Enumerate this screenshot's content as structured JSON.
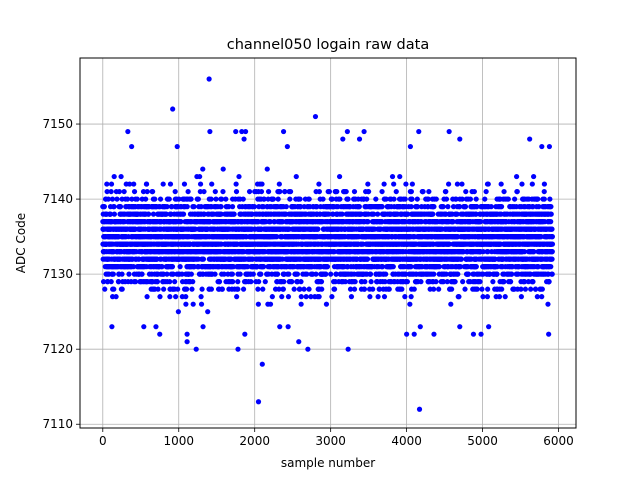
{
  "chart_data": {
    "type": "scatter",
    "title": "channel050 logain raw data",
    "xlabel": "sample number",
    "ylabel": "ADC Code",
    "xlim": [
      -300,
      6230
    ],
    "ylim": [
      7109.5,
      7158.8
    ],
    "xticks": [
      0,
      1000,
      2000,
      3000,
      4000,
      5000,
      6000
    ],
    "yticks": [
      7110,
      7120,
      7130,
      7140,
      7150
    ],
    "grid": true,
    "marker_color": "#0000ff",
    "series": [
      {
        "x_range": [
          0,
          5920
        ],
        "y_band": [
          7123,
          7146
        ],
        "density_note_count": 5920,
        "points": [
          [
            1400,
            7156
          ],
          [
            920,
            7152
          ],
          [
            2800,
            7151
          ],
          [
            2050,
            7113
          ],
          [
            4170,
            7112
          ],
          [
            2100,
            7118
          ],
          [
            1230,
            7120
          ],
          [
            1780,
            7120
          ],
          [
            2700,
            7120
          ],
          [
            3230,
            7120
          ],
          [
            1110,
            7121
          ],
          [
            2580,
            7121
          ],
          [
            750,
            7122
          ],
          [
            1110,
            7122
          ],
          [
            1870,
            7122
          ],
          [
            4000,
            7122
          ],
          [
            4100,
            7122
          ],
          [
            4360,
            7122
          ],
          [
            4880,
            7122
          ],
          [
            4980,
            7122
          ],
          [
            5870,
            7122
          ],
          [
            120,
            7123
          ],
          [
            540,
            7123
          ],
          [
            700,
            7123
          ],
          [
            1320,
            7123
          ],
          [
            2330,
            7123
          ],
          [
            2440,
            7123
          ],
          [
            4180,
            7123
          ],
          [
            4700,
            7123
          ],
          [
            5080,
            7123
          ],
          [
            330,
            7149
          ],
          [
            1410,
            7149
          ],
          [
            1750,
            7149
          ],
          [
            1830,
            7149
          ],
          [
            1880,
            7149
          ],
          [
            2380,
            7149
          ],
          [
            3220,
            7149
          ],
          [
            3440,
            7149
          ],
          [
            4160,
            7149
          ],
          [
            4560,
            7149
          ],
          [
            4700,
            7148
          ],
          [
            5620,
            7148
          ],
          [
            380,
            7147
          ],
          [
            980,
            7147
          ],
          [
            2430,
            7147
          ],
          [
            3380,
            7148
          ],
          [
            4050,
            7147
          ],
          [
            5780,
            7147
          ],
          [
            5880,
            7147
          ],
          [
            1860,
            7148
          ],
          [
            3160,
            7148
          ]
        ]
      }
    ]
  }
}
